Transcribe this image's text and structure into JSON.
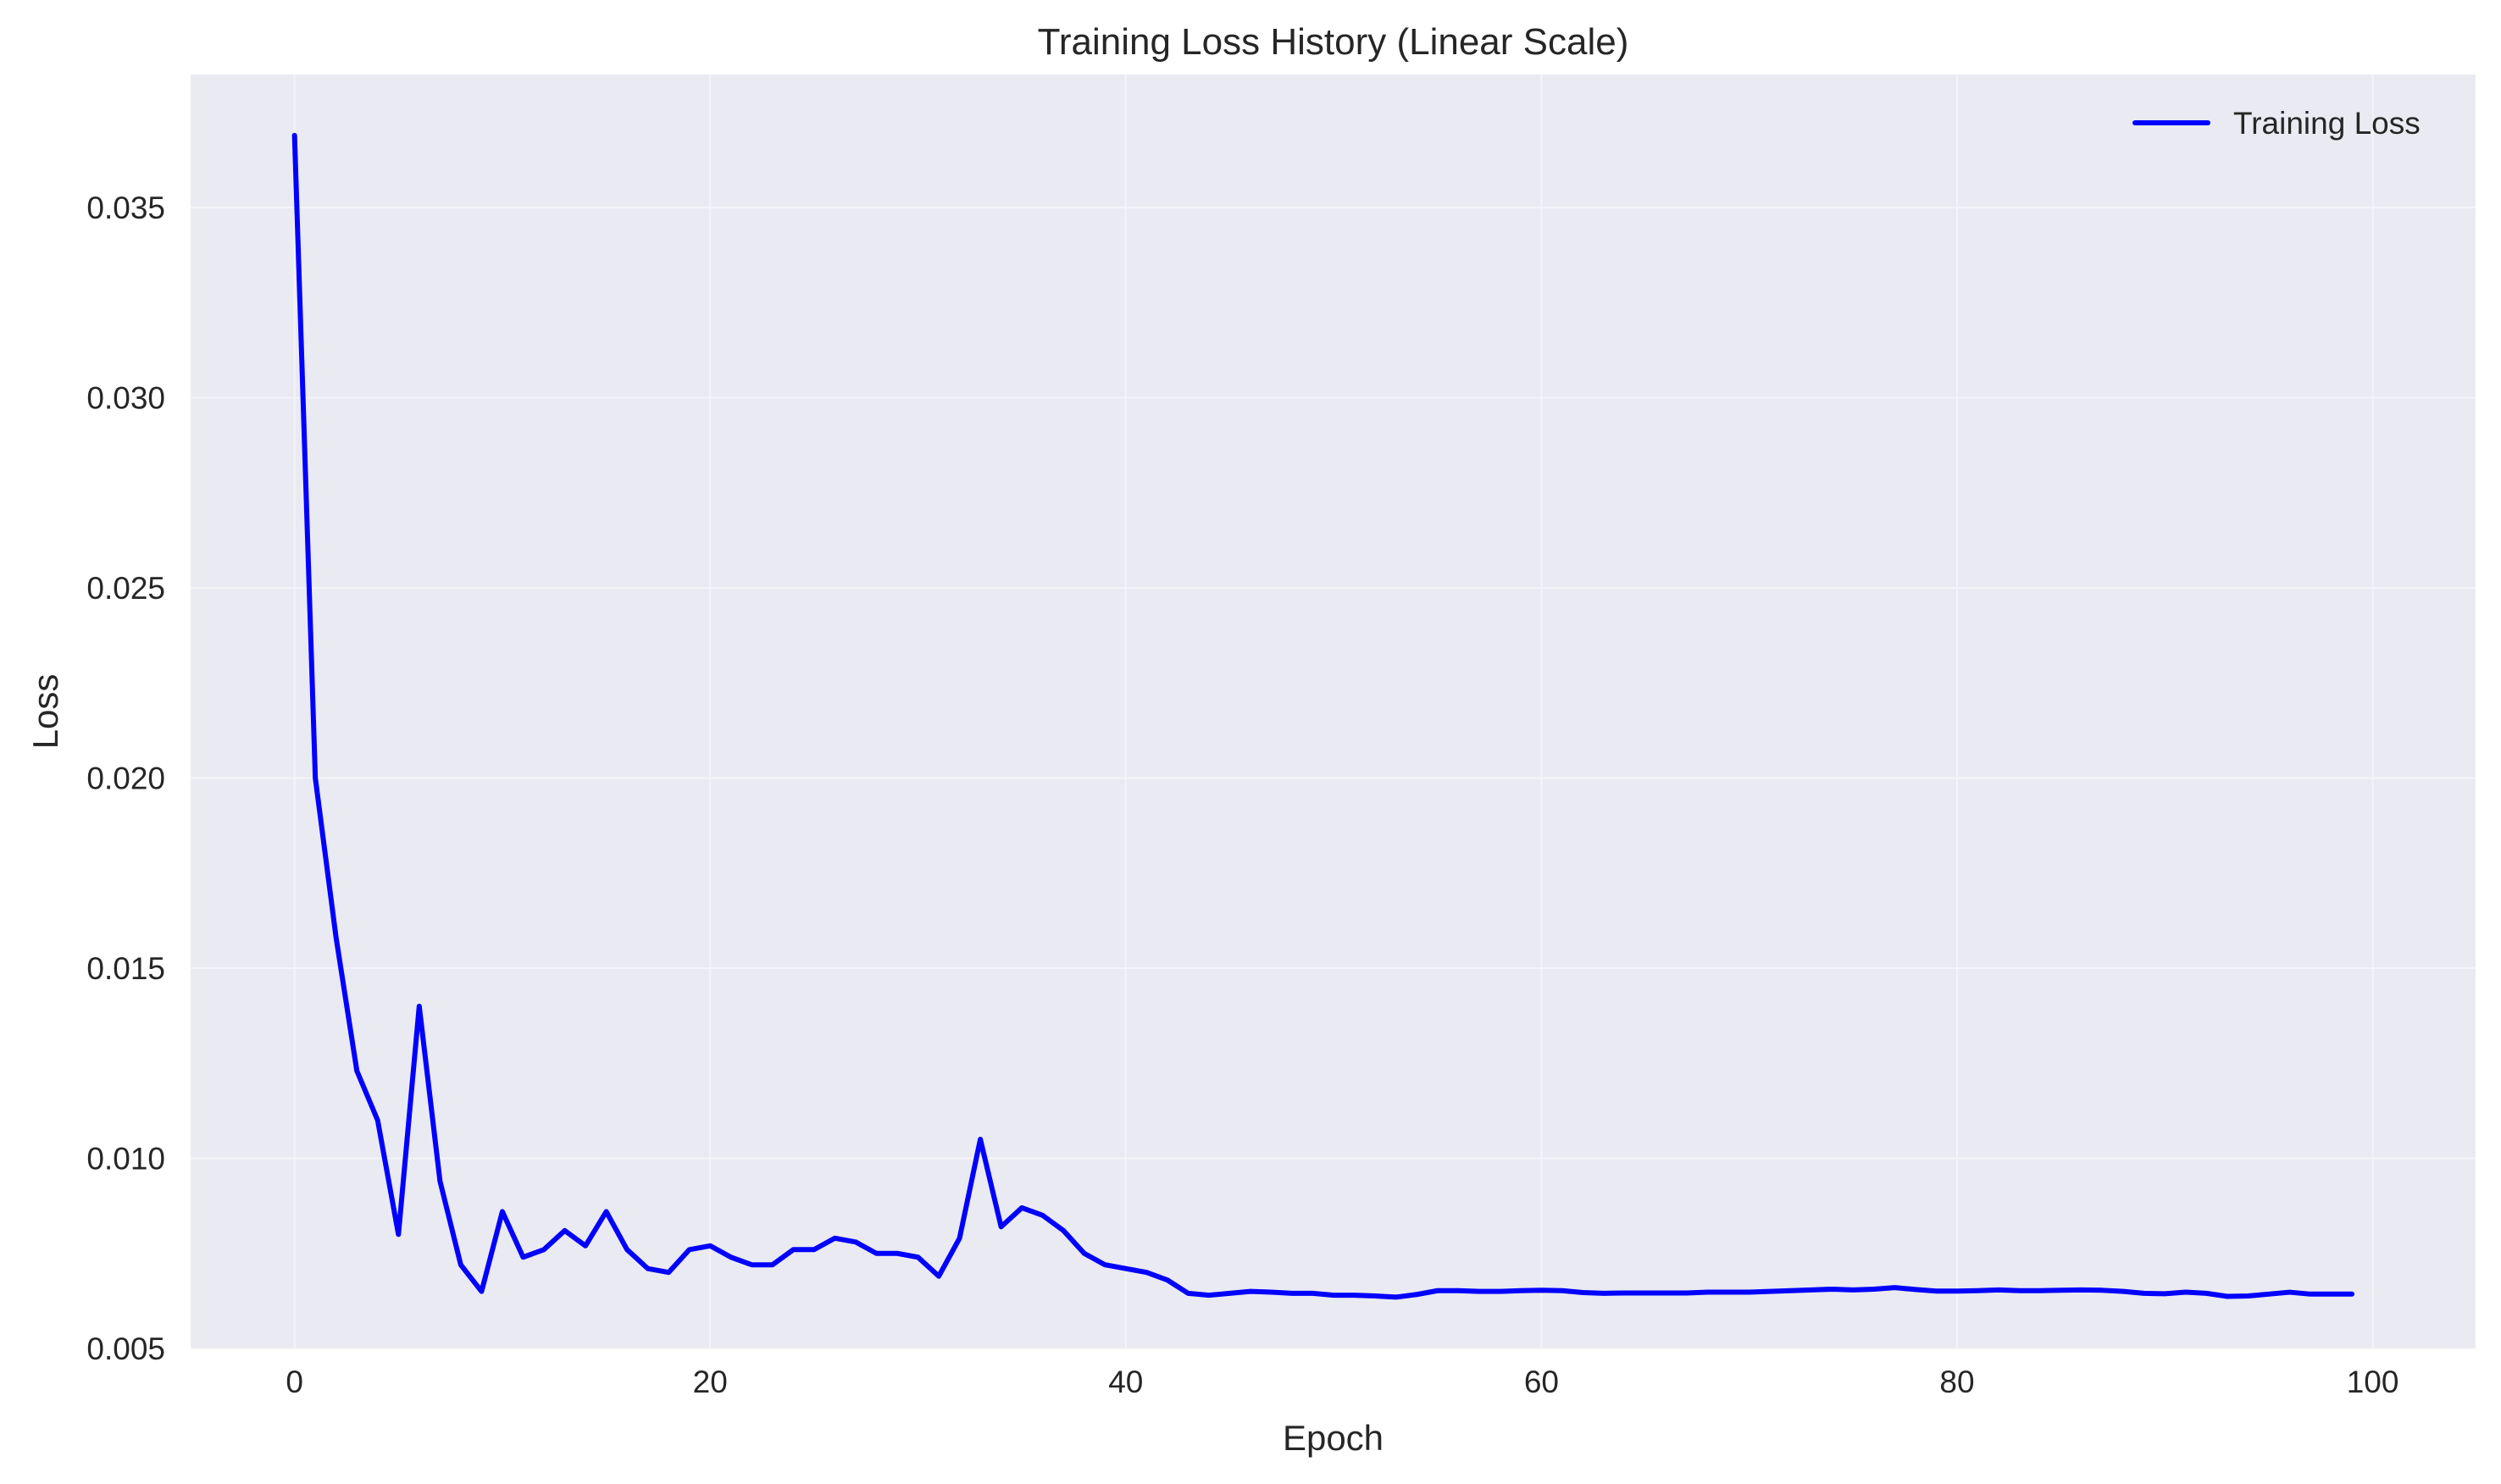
{
  "chart_data": {
    "type": "line",
    "title": "Training Loss History (Linear Scale)",
    "xlabel": "Epoch",
    "ylabel": "Loss",
    "xlim": [
      -5,
      104.95
    ],
    "ylim": [
      0.005,
      0.0385
    ],
    "x_ticks": [
      0,
      20,
      40,
      60,
      80,
      100
    ],
    "y_ticks": [
      0.005,
      0.01,
      0.015,
      0.02,
      0.025,
      0.03,
      0.035
    ],
    "y_tick_labels": [
      "0.005",
      "0.010",
      "0.015",
      "0.020",
      "0.025",
      "0.030",
      "0.035"
    ],
    "x_tick_labels": [
      "0",
      "20",
      "40",
      "60",
      "80",
      "100"
    ],
    "grid": true,
    "legend_position": "top-right",
    "plot_background": "#eaeaf2",
    "series": [
      {
        "name": "Training Loss",
        "color": "#0000ff",
        "x": [
          0,
          1,
          2,
          3,
          4,
          5,
          6,
          7,
          8,
          9,
          10,
          11,
          12,
          13,
          14,
          15,
          16,
          17,
          18,
          19,
          20,
          21,
          22,
          23,
          24,
          25,
          26,
          27,
          28,
          29,
          30,
          31,
          32,
          33,
          34,
          35,
          36,
          37,
          38,
          39,
          40,
          41,
          42,
          43,
          44,
          45,
          46,
          47,
          48,
          49,
          50,
          51,
          52,
          53,
          54,
          55,
          56,
          57,
          58,
          59,
          60,
          61,
          62,
          63,
          64,
          65,
          66,
          67,
          68,
          69,
          70,
          71,
          72,
          73,
          74,
          75,
          76,
          77,
          78,
          79,
          80,
          81,
          82,
          83,
          84,
          85,
          86,
          87,
          88,
          89,
          90,
          91,
          92,
          93,
          94,
          95,
          96,
          97,
          98,
          99
        ],
        "values": [
          0.0369,
          0.02,
          0.0158,
          0.0123,
          0.011,
          0.008,
          0.014,
          0.0094,
          0.0072,
          0.0065,
          0.0086,
          0.0074,
          0.0076,
          0.0081,
          0.0077,
          0.0086,
          0.0076,
          0.0071,
          0.007,
          0.0076,
          0.0077,
          0.0074,
          0.0072,
          0.0072,
          0.0076,
          0.0076,
          0.0079,
          0.0078,
          0.0075,
          0.0075,
          0.0074,
          0.0069,
          0.0079,
          0.0105,
          0.0082,
          0.0087,
          0.0085,
          0.0081,
          0.0075,
          0.0072,
          0.0071,
          0.007,
          0.0068,
          0.00645,
          0.0064,
          0.00645,
          0.0065,
          0.00648,
          0.00645,
          0.00645,
          0.0064,
          0.0064,
          0.00638,
          0.00635,
          0.00642,
          0.00652,
          0.00652,
          0.0065,
          0.0065,
          0.00652,
          0.00653,
          0.00652,
          0.00647,
          0.00645,
          0.00646,
          0.00646,
          0.00646,
          0.00646,
          0.00648,
          0.00648,
          0.00648,
          0.0065,
          0.00652,
          0.00654,
          0.00656,
          0.00654,
          0.00656,
          0.0066,
          0.00655,
          0.00651,
          0.00651,
          0.00652,
          0.00654,
          0.00652,
          0.00652,
          0.00653,
          0.00654,
          0.00653,
          0.0065,
          0.00645,
          0.00644,
          0.00648,
          0.00645,
          0.00637,
          0.00638,
          0.00643,
          0.00648,
          0.00643,
          0.00643,
          0.00643
        ]
      }
    ]
  }
}
